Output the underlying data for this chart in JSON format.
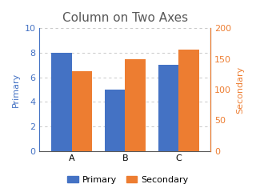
{
  "title": "Column on Two Axes",
  "categories": [
    "A",
    "B",
    "C"
  ],
  "primary_values": [
    8,
    5,
    7
  ],
  "secondary_values": [
    130,
    150,
    165
  ],
  "primary_color": "#4472C4",
  "secondary_color": "#ED7D31",
  "primary_label": "Primary",
  "secondary_label": "Secondary",
  "primary_ylim": [
    0,
    10
  ],
  "secondary_ylim": [
    0,
    200
  ],
  "primary_yticks": [
    0,
    2,
    4,
    6,
    8,
    10
  ],
  "secondary_yticks": [
    0,
    50,
    100,
    150,
    200
  ],
  "title_fontsize": 11,
  "axis_label_fontsize": 8,
  "tick_fontsize": 8,
  "legend_fontsize": 8,
  "bar_width": 0.38,
  "title_color": "#595959",
  "grid_color": "#BFBFBF",
  "left_spine_color": "#4472C4",
  "right_spine_color": "#ED7D31",
  "bottom_spine_color": "#595959"
}
